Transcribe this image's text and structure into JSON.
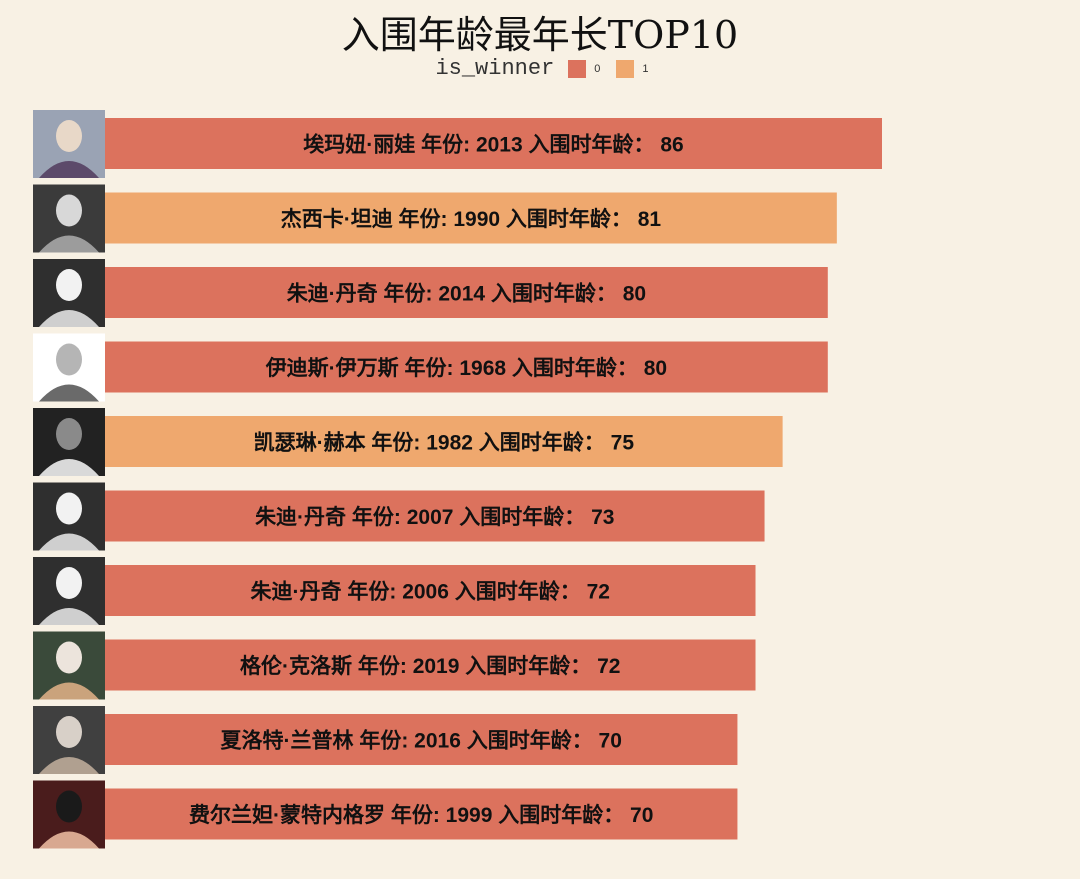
{
  "chart_data": {
    "type": "bar",
    "orientation": "horizontal",
    "title": "入围年龄最年长TOP10",
    "legend": {
      "title": "is_winner",
      "placement": "top-center",
      "entries": [
        {
          "label": "0",
          "color": "#dc725d"
        },
        {
          "label": "1",
          "color": "#efa86e"
        }
      ]
    },
    "label_texts": {
      "year_prefix": "年份:",
      "age_prefix": "入围时年龄："
    },
    "xlim": [
      0,
      100
    ],
    "grid": false,
    "bars": [
      {
        "name": "埃玛妞·丽娃",
        "year": 2013,
        "age": 86,
        "is_winner": 0
      },
      {
        "name": "杰西卡·坦迪",
        "year": 1990,
        "age": 81,
        "is_winner": 1
      },
      {
        "name": "朱迪·丹奇",
        "year": 2014,
        "age": 80,
        "is_winner": 0
      },
      {
        "name": "伊迪斯·伊万斯",
        "year": 1968,
        "age": 80,
        "is_winner": 0
      },
      {
        "name": "凯瑟琳·赫本",
        "year": 1982,
        "age": 75,
        "is_winner": 1
      },
      {
        "name": "朱迪·丹奇",
        "year": 2007,
        "age": 73,
        "is_winner": 0
      },
      {
        "name": "朱迪·丹奇",
        "year": 2006,
        "age": 72,
        "is_winner": 0
      },
      {
        "name": "格伦·克洛斯",
        "year": 2019,
        "age": 72,
        "is_winner": 0
      },
      {
        "name": "夏洛特·兰普林",
        "year": 2016,
        "age": 70,
        "is_winner": 0
      },
      {
        "name": "费尔兰妲·蒙特内格罗",
        "year": 1999,
        "age": 70,
        "is_winner": 0
      }
    ]
  }
}
